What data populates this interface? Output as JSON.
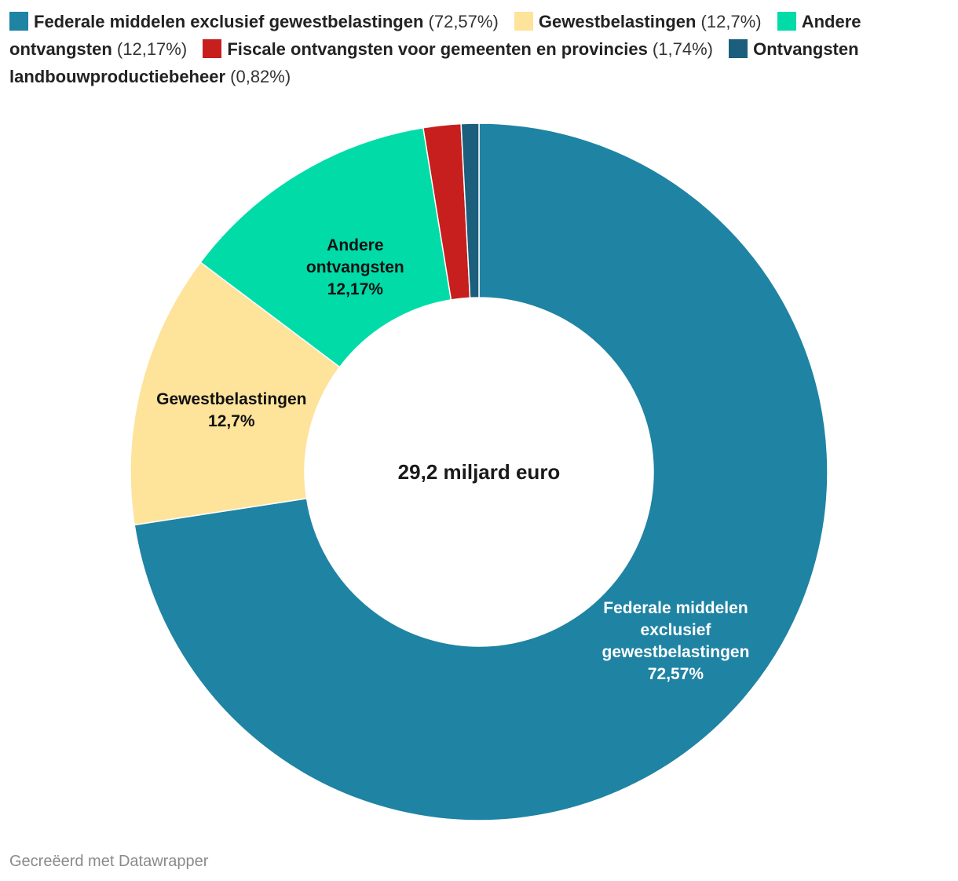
{
  "chart_data": {
    "type": "donut",
    "center_label": "29,2 miljard euro",
    "slices": [
      {
        "name": "Federale middelen exclusief gewestbelastingen",
        "value": 72.57,
        "pct_label": "72,57%",
        "color": "#1f83a3",
        "label_color": "#ffffff",
        "label_lines": [
          "Federale middelen",
          "exclusief",
          "gewestbelastingen",
          "72,57%"
        ]
      },
      {
        "name": "Gewestbelastingen",
        "value": 12.7,
        "pct_label": "12,7%",
        "color": "#fee39b",
        "label_color": "#111111",
        "label_lines": [
          "Gewestbelastingen",
          "12,7%"
        ]
      },
      {
        "name": "Andere ontvangsten",
        "value": 12.17,
        "pct_label": "12,17%",
        "color": "#00dba8",
        "label_color": "#111111",
        "label_lines": [
          "Andere",
          "ontvangsten",
          "12,17%"
        ]
      },
      {
        "name": "Fiscale ontvangsten voor gemeenten en provincies",
        "value": 1.74,
        "pct_label": "1,74%",
        "color": "#c71e1e",
        "label_color": "#111111",
        "label_lines": []
      },
      {
        "name": "Ontvangsten landbouwproductiebeheer",
        "value": 0.82,
        "pct_label": "0,82%",
        "color": "#1b5f7c",
        "label_color": "#111111",
        "label_lines": []
      }
    ],
    "legend": [
      {
        "name": "Federale middelen exclusief gewestbelastingen",
        "pct": "(72,57%)",
        "color": "#1f83a3"
      },
      {
        "name": "Gewestbelastingen",
        "pct": "(12,7%)",
        "color": "#fee39b"
      },
      {
        "name": "Andere ontvangsten",
        "pct": "(12,17%)",
        "color": "#00dba8"
      },
      {
        "name": "Fiscale ontvangsten voor gemeenten en provincies",
        "pct": "(1,74%)",
        "color": "#c71e1e"
      },
      {
        "name": "Ontvangsten landbouwproductiebeheer",
        "pct": "(0,82%)",
        "color": "#1b5f7c"
      }
    ]
  },
  "footer": {
    "credit": "Gecreëerd met Datawrapper"
  }
}
